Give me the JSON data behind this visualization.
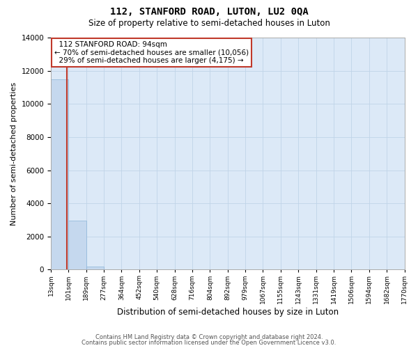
{
  "title": "112, STANFORD ROAD, LUTON, LU2 0QA",
  "subtitle": "Size of property relative to semi-detached houses in Luton",
  "xlabel": "Distribution of semi-detached houses by size in Luton",
  "ylabel": "Number of semi-detached properties",
  "property_size": 94,
  "property_label": "112 STANFORD ROAD: 94sqm",
  "pct_smaller": 70,
  "n_smaller": 10056,
  "pct_larger": 29,
  "n_larger": 4175,
  "bin_labels": [
    "13sqm",
    "101sqm",
    "189sqm",
    "277sqm",
    "364sqm",
    "452sqm",
    "540sqm",
    "628sqm",
    "716sqm",
    "804sqm",
    "892sqm",
    "979sqm",
    "1067sqm",
    "1155sqm",
    "1243sqm",
    "1331sqm",
    "1419sqm",
    "1506sqm",
    "1594sqm",
    "1682sqm",
    "1770sqm"
  ],
  "bin_edges": [
    13,
    101,
    189,
    277,
    364,
    452,
    540,
    628,
    716,
    804,
    892,
    979,
    1067,
    1155,
    1243,
    1331,
    1419,
    1506,
    1594,
    1682,
    1770
  ],
  "bar_heights": [
    11500,
    2950,
    200,
    30,
    5,
    2,
    1,
    1,
    0,
    0,
    0,
    0,
    0,
    0,
    0,
    0,
    0,
    0,
    0,
    0
  ],
  "bar_color": "#c5d8ee",
  "bar_edge_color": "#8ab4d8",
  "highlight_color": "#c0392b",
  "ylim": [
    0,
    14000
  ],
  "yticks": [
    0,
    2000,
    4000,
    6000,
    8000,
    10000,
    12000,
    14000
  ],
  "grid_color": "#c0d4e8",
  "background_color": "#dce9f7",
  "footer_line1": "Contains HM Land Registry data © Crown copyright and database right 2024.",
  "footer_line2": "Contains public sector information licensed under the Open Government Licence v3.0."
}
